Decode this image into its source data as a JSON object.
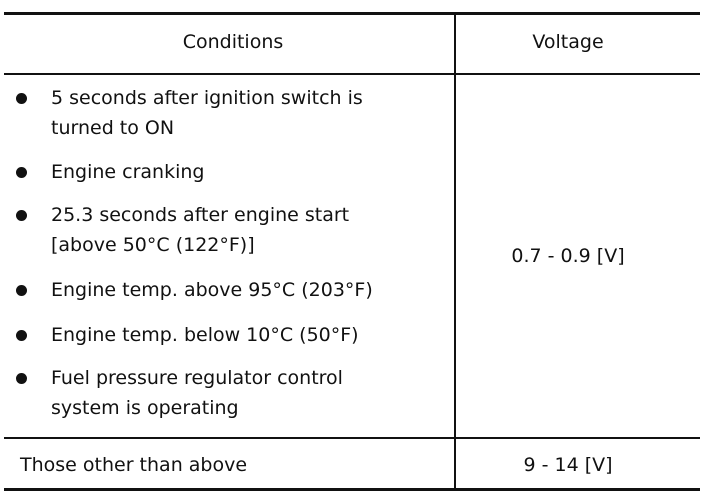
{
  "table": {
    "header": {
      "conditions": "Conditions",
      "voltage": "Voltage"
    },
    "rows": [
      {
        "conditions": [
          [
            "5 seconds after ignition switch is",
            "turned to ON"
          ],
          [
            "Engine cranking"
          ],
          [
            "25.3 seconds after engine start",
            "[above 50°C (122°F)]"
          ],
          [
            "Engine temp. above 95°C (203°F)"
          ],
          [
            "Engine temp. below 10°C (50°F)"
          ],
          [
            "Fuel pressure regulator control",
            "system is operating"
          ]
        ],
        "voltage": "0.7 - 0.9 [V]"
      },
      {
        "conditions": "Those other than above",
        "voltage": "9 - 14 [V]"
      }
    ]
  }
}
